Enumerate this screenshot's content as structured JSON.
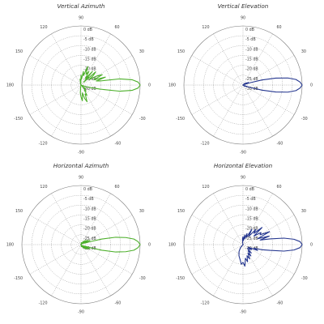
{
  "colors": {
    "green": "#4caf2a",
    "blue": "#24368f",
    "grid": "#9a9a9a"
  },
  "chart_data": [
    {
      "type": "polar",
      "title": "Vertical Azimuth",
      "color": "green",
      "angle_ticks": [
        "0",
        "30",
        "60",
        "90",
        "120",
        "150",
        "180",
        "-150",
        "-120",
        "-90",
        "-60",
        "-30"
      ],
      "radial_ticks": [
        "0 dB",
        "-5 dB",
        "-10 dB",
        "-15 dB",
        "-20 dB",
        "-25 dB",
        "-30 dB"
      ],
      "rlim_db": [
        -30,
        0
      ],
      "series": [
        {
          "theta_deg": [
            0,
            3,
            6,
            9,
            12,
            15,
            18,
            22,
            26,
            30,
            34,
            38,
            42,
            46,
            50,
            55,
            60,
            65,
            70,
            75,
            80,
            85,
            90,
            95,
            100,
            105,
            110,
            115,
            120,
            130,
            140,
            150,
            160,
            170,
            180,
            -170,
            -160,
            -150,
            -140,
            -130,
            -120,
            -110,
            -100,
            -95,
            -90,
            -85,
            -80,
            -75,
            -70,
            -65,
            -60,
            -55,
            -50,
            -45,
            -40,
            -35,
            -30,
            -26,
            -22,
            -18,
            -15,
            -12,
            -9,
            -6,
            -3
          ],
          "r_db": [
            0,
            -1,
            -4,
            -10,
            -20,
            -22,
            -17,
            -23,
            -18,
            -21,
            -25,
            -22,
            -20,
            -28,
            -21,
            -26,
            -22,
            -24,
            -20,
            -25,
            -23,
            -27,
            -25,
            -29,
            -27,
            -30,
            -29,
            -30,
            -30,
            -30,
            -30,
            -30,
            -30,
            -30,
            -30,
            -30,
            -30,
            -30,
            -30,
            -30,
            -30,
            -30,
            -29,
            -26,
            -24,
            -22,
            -26,
            -23,
            -21,
            -25,
            -24,
            -27,
            -26,
            -29,
            -27,
            -30,
            -29,
            -30,
            -30,
            -28,
            -25,
            -20,
            -10,
            -4,
            -1
          ]
        }
      ]
    },
    {
      "type": "polar",
      "title": "Vertical Elevation",
      "color": "blue",
      "angle_ticks": [
        "0",
        "30",
        "60",
        "90",
        "120",
        "150",
        "180",
        "-150",
        "-120",
        "-90",
        "-60",
        "-30"
      ],
      "radial_ticks": [
        "0 dB",
        "-5 dB",
        "-10 dB",
        "-15 dB",
        "-20 dB",
        "-25 dB",
        "-30 dB"
      ],
      "rlim_db": [
        -30,
        0
      ],
      "series": [
        {
          "theta_deg": [
            0,
            3,
            6,
            9,
            12,
            15,
            18,
            22,
            26,
            30,
            35,
            40,
            45,
            50,
            55,
            60,
            70,
            80,
            90,
            100,
            110,
            120,
            135,
            150,
            165,
            180,
            -165,
            -150,
            -135,
            -120,
            -110,
            -100,
            -90,
            -80,
            -70,
            -60,
            -55,
            -50,
            -45,
            -40,
            -35,
            -30,
            -26,
            -22,
            -18,
            -15,
            -12,
            -9,
            -6,
            -3
          ],
          "r_db": [
            0,
            -1,
            -3,
            -7,
            -13,
            -20,
            -26,
            -29,
            -27,
            -30,
            -28,
            -30,
            -29,
            -30,
            -30,
            -30,
            -30,
            -30,
            -30,
            -30,
            -30,
            -30,
            -30,
            -30,
            -30,
            -30,
            -30,
            -30,
            -30,
            -30,
            -30,
            -30,
            -30,
            -30,
            -30,
            -30,
            -30,
            -30,
            -30,
            -30,
            -29,
            -30,
            -28,
            -29,
            -26,
            -20,
            -13,
            -7,
            -3,
            -1
          ]
        }
      ]
    },
    {
      "type": "polar",
      "title": "Horizontal Azimuth",
      "color": "green",
      "angle_ticks": [
        "0",
        "30",
        "60",
        "90",
        "120",
        "150",
        "180",
        "-150",
        "-120",
        "-90",
        "-60",
        "-30"
      ],
      "radial_ticks": [
        "0 dB",
        "-5 dB",
        "-10 dB",
        "-15 dB",
        "-20 dB",
        "-25 dB",
        "-30 dB"
      ],
      "rlim_db": [
        -30,
        0
      ],
      "series": [
        {
          "theta_deg": [
            0,
            3,
            6,
            9,
            12,
            15,
            18,
            22,
            26,
            30,
            35,
            40,
            45,
            50,
            55,
            60,
            70,
            80,
            90,
            100,
            110,
            120,
            135,
            150,
            165,
            180,
            -165,
            -150,
            -135,
            -120,
            -110,
            -100,
            -90,
            -80,
            -70,
            -60,
            -55,
            -50,
            -45,
            -40,
            -35,
            -30,
            -26,
            -22,
            -18,
            -15,
            -12,
            -9,
            -6,
            -3
          ],
          "r_db": [
            0,
            -1,
            -3,
            -7,
            -12,
            -19,
            -25,
            -28,
            -25,
            -29,
            -26,
            -29,
            -27,
            -30,
            -28,
            -30,
            -30,
            -29,
            -30,
            -30,
            -30,
            -30,
            -30,
            -30,
            -30,
            -30,
            -30,
            -30,
            -30,
            -30,
            -30,
            -30,
            -30,
            -29,
            -30,
            -29,
            -28,
            -30,
            -27,
            -29,
            -26,
            -29,
            -25,
            -28,
            -25,
            -19,
            -12,
            -7,
            -3,
            -1
          ]
        }
      ]
    },
    {
      "type": "polar",
      "title": "Horizontal Elevation",
      "color": "blue",
      "angle_ticks": [
        "0",
        "30",
        "60",
        "90",
        "120",
        "150",
        "180",
        "-150",
        "-120",
        "-90",
        "-60",
        "-30"
      ],
      "radial_ticks": [
        "0 dB",
        "-5 dB",
        "-10 dB",
        "-15 dB",
        "-20 dB",
        "-25 dB",
        "-30 dB"
      ],
      "rlim_db": [
        -30,
        0
      ],
      "series": [
        {
          "theta_deg": [
            0,
            3,
            6,
            9,
            12,
            15,
            18,
            22,
            26,
            30,
            34,
            38,
            42,
            46,
            50,
            55,
            60,
            65,
            70,
            75,
            80,
            85,
            90,
            95,
            100,
            110,
            120,
            130,
            140,
            150,
            160,
            170,
            180,
            -170,
            -160,
            -150,
            -140,
            -130,
            -120,
            -110,
            -100,
            -95,
            -90,
            -85,
            -80,
            -75,
            -70,
            -65,
            -60,
            -55,
            -50,
            -45,
            -40,
            -35,
            -30,
            -26,
            -22,
            -18,
            -15,
            -12,
            -9,
            -6,
            -3
          ],
          "r_db": [
            0,
            -1,
            -4,
            -9,
            -16,
            -21,
            -16,
            -22,
            -15,
            -20,
            -19,
            -23,
            -17,
            -22,
            -20,
            -25,
            -21,
            -26,
            -24,
            -27,
            -25,
            -28,
            -26,
            -27,
            -29,
            -30,
            -30,
            -30,
            -30,
            -30,
            -30,
            -30,
            -30,
            -30,
            -30,
            -30,
            -30,
            -28,
            -26,
            -24,
            -22,
            -20,
            -21,
            -19,
            -23,
            -21,
            -24,
            -22,
            -25,
            -23,
            -26,
            -24,
            -27,
            -26,
            -25,
            -27,
            -22,
            -24,
            -20,
            -16,
            -9,
            -4,
            -1
          ]
        }
      ]
    }
  ]
}
